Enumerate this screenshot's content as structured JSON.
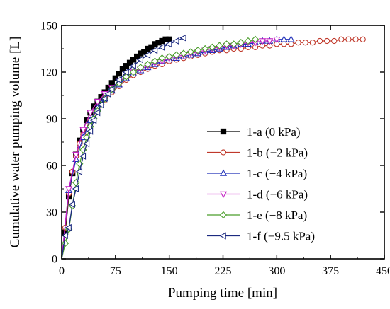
{
  "chart_data": {
    "type": "line",
    "title": "",
    "xlabel": "Pumping time [min]",
    "ylabel": "Cumulative water pumping volume [L]",
    "xlim": [
      0,
      450
    ],
    "ylim": [
      0,
      150
    ],
    "xticks": [
      0,
      75,
      150,
      225,
      300,
      375,
      450
    ],
    "yticks": [
      0,
      30,
      60,
      90,
      120,
      150
    ],
    "grid": false,
    "legend_position": "right",
    "series": [
      {
        "name": "1-a (0 kPa)",
        "color": "#000000",
        "marker": "square-filled",
        "x": [
          0,
          5,
          10,
          15,
          20,
          25,
          30,
          35,
          40,
          45,
          50,
          55,
          60,
          65,
          70,
          75,
          80,
          85,
          90,
          95,
          100,
          105,
          110,
          115,
          120,
          125,
          130,
          135,
          140,
          145,
          150
        ],
        "y": [
          0,
          17,
          40,
          55,
          67,
          76,
          83,
          89,
          94,
          98,
          101,
          104,
          107,
          110,
          113,
          116,
          119,
          122,
          124,
          126,
          128,
          130,
          132,
          133,
          135,
          136,
          138,
          139,
          140,
          141,
          141
        ]
      },
      {
        "name": "1-b (−2 kPa)",
        "color": "#c0392b",
        "marker": "circle-open",
        "x": [
          0,
          5,
          10,
          15,
          20,
          25,
          30,
          40,
          50,
          60,
          70,
          80,
          90,
          100,
          110,
          120,
          130,
          140,
          150,
          160,
          170,
          180,
          190,
          200,
          210,
          220,
          230,
          240,
          250,
          260,
          270,
          280,
          290,
          300,
          310,
          320,
          330,
          340,
          350,
          360,
          370,
          380,
          390,
          400,
          410,
          420
        ],
        "y": [
          0,
          20,
          42,
          56,
          66,
          74,
          80,
          89,
          96,
          102,
          107,
          111,
          115,
          118,
          120,
          122,
          124,
          125,
          127,
          128,
          129,
          130,
          131,
          132,
          133,
          134,
          134,
          135,
          135,
          136,
          136,
          137,
          137,
          138,
          138,
          138,
          139,
          139,
          139,
          140,
          140,
          140,
          141,
          141,
          141,
          141
        ]
      },
      {
        "name": "1-c (−4 kPa)",
        "color": "#1f2fb8",
        "marker": "triangle-up-open",
        "x": [
          0,
          10,
          20,
          30,
          40,
          50,
          60,
          70,
          80,
          90,
          100,
          110,
          120,
          130,
          140,
          150,
          160,
          170,
          180,
          190,
          200,
          210,
          220,
          230,
          240,
          250,
          260,
          270,
          280,
          290,
          300,
          310,
          320
        ],
        "y": [
          0,
          44,
          64,
          78,
          89,
          97,
          103,
          108,
          112,
          116,
          119,
          121,
          123,
          125,
          127,
          128,
          129,
          130,
          131,
          132,
          133,
          134,
          135,
          136,
          137,
          138,
          138,
          139,
          140,
          140,
          141,
          141,
          141
        ]
      },
      {
        "name": "1-d (−6 kPa)",
        "color": "#c31fc3",
        "marker": "triangle-down-open",
        "x": [
          0,
          10,
          20,
          30,
          40,
          50,
          60,
          70,
          80,
          90,
          100,
          110,
          120,
          130,
          140,
          150,
          160,
          170,
          180,
          190,
          200,
          210,
          220,
          230,
          240,
          250,
          260,
          270,
          280,
          290,
          300
        ],
        "y": [
          0,
          45,
          67,
          83,
          94,
          101,
          106,
          110,
          114,
          117,
          120,
          122,
          124,
          126,
          127,
          129,
          130,
          131,
          132,
          133,
          134,
          135,
          136,
          137,
          137,
          138,
          139,
          139,
          140,
          140,
          141
        ]
      },
      {
        "name": "1-e (−8 kPa)",
        "color": "#4a9e2b",
        "marker": "diamond-open",
        "x": [
          0,
          5,
          10,
          15,
          20,
          25,
          30,
          35,
          40,
          45,
          50,
          55,
          60,
          70,
          80,
          90,
          100,
          110,
          120,
          130,
          140,
          150,
          160,
          170,
          180,
          190,
          200,
          210,
          220,
          230,
          240,
          250,
          260,
          270
        ],
        "y": [
          0,
          10,
          19,
          34,
          49,
          61,
          70,
          78,
          85,
          90,
          95,
          99,
          103,
          109,
          113,
          117,
          120,
          123,
          125,
          127,
          129,
          130,
          131,
          132,
          133,
          134,
          135,
          136,
          137,
          138,
          138,
          139,
          140,
          141
        ]
      },
      {
        "name": "1-f (−9.5 kPa)",
        "color": "#1c2a80",
        "marker": "triangle-left-open",
        "x": [
          0,
          5,
          10,
          15,
          20,
          25,
          30,
          35,
          40,
          45,
          50,
          55,
          60,
          65,
          70,
          80,
          90,
          100,
          110,
          120,
          130,
          140,
          150,
          160,
          170
        ],
        "y": [
          0,
          15,
          20,
          35,
          45,
          56,
          66,
          74,
          82,
          89,
          94,
          99,
          103,
          106,
          109,
          115,
          120,
          124,
          128,
          131,
          134,
          136,
          138,
          140,
          142
        ]
      }
    ]
  }
}
